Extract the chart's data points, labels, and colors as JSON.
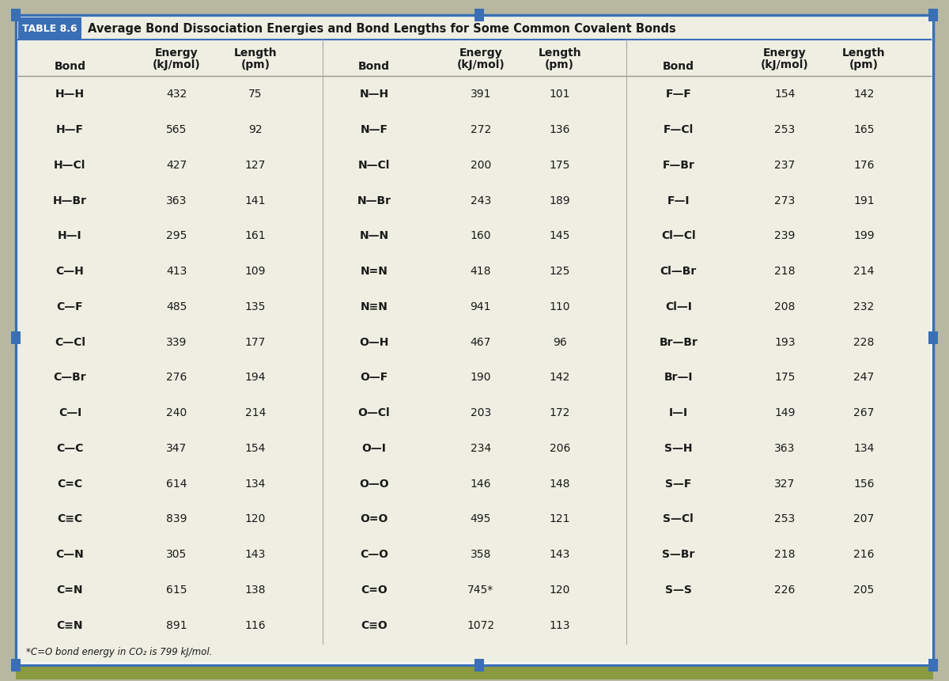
{
  "title": "Average Bond Dissociation Energies and Bond Lengths for Some Common Covalent Bonds",
  "table_label": "TABLE 8.6",
  "footnote": "*C=O bond energy in CO₂ is 799 kJ/mol.",
  "col1": [
    [
      "H—H",
      "432",
      "75"
    ],
    [
      "H—F",
      "565",
      "92"
    ],
    [
      "H—Cl",
      "427",
      "127"
    ],
    [
      "H—Br",
      "363",
      "141"
    ],
    [
      "H—I",
      "295",
      "161"
    ],
    [
      "C—H",
      "413",
      "109"
    ],
    [
      "C—F",
      "485",
      "135"
    ],
    [
      "C—Cl",
      "339",
      "177"
    ],
    [
      "C—Br",
      "276",
      "194"
    ],
    [
      "C—I",
      "240",
      "214"
    ],
    [
      "C—C",
      "347",
      "154"
    ],
    [
      "C=C",
      "614",
      "134"
    ],
    [
      "C≡C",
      "839",
      "120"
    ],
    [
      "C—N",
      "305",
      "143"
    ],
    [
      "C=N",
      "615",
      "138"
    ],
    [
      "C≡N",
      "891",
      "116"
    ]
  ],
  "col2": [
    [
      "N—H",
      "391",
      "101"
    ],
    [
      "N—F",
      "272",
      "136"
    ],
    [
      "N—Cl",
      "200",
      "175"
    ],
    [
      "N—Br",
      "243",
      "189"
    ],
    [
      "N—N",
      "160",
      "145"
    ],
    [
      "N=N",
      "418",
      "125"
    ],
    [
      "N≡N",
      "941",
      "110"
    ],
    [
      "O—H",
      "467",
      "96"
    ],
    [
      "O—F",
      "190",
      "142"
    ],
    [
      "O—Cl",
      "203",
      "172"
    ],
    [
      "O—I",
      "234",
      "206"
    ],
    [
      "O—O",
      "146",
      "148"
    ],
    [
      "O=O",
      "495",
      "121"
    ],
    [
      "C—O",
      "358",
      "143"
    ],
    [
      "C=O",
      "745*",
      "120"
    ],
    [
      "C≡O",
      "1072",
      "113"
    ]
  ],
  "col3": [
    [
      "F—F",
      "154",
      "142"
    ],
    [
      "F—Cl",
      "253",
      "165"
    ],
    [
      "F—Br",
      "237",
      "176"
    ],
    [
      "F—I",
      "273",
      "191"
    ],
    [
      "Cl—Cl",
      "239",
      "199"
    ],
    [
      "Cl—Br",
      "218",
      "214"
    ],
    [
      "Cl—I",
      "208",
      "232"
    ],
    [
      "Br—Br",
      "193",
      "228"
    ],
    [
      "Br—I",
      "175",
      "247"
    ],
    [
      "I—I",
      "149",
      "267"
    ],
    [
      "S—H",
      "363",
      "134"
    ],
    [
      "S—F",
      "327",
      "156"
    ],
    [
      "S—Cl",
      "253",
      "207"
    ],
    [
      "S—Br",
      "218",
      "216"
    ],
    [
      "S—S",
      "226",
      "205"
    ],
    [
      "",
      "",
      ""
    ]
  ],
  "bg_color": "#eeeee2",
  "title_bg": "#3a6fb5",
  "title_fg": "#ffffff",
  "border_color": "#3a6fb5",
  "outer_bg": "#b8b8a0",
  "text_color": "#1a1a1a",
  "font_size": 10,
  "header_font_size": 10,
  "title_font_size": 10.5,
  "label_font_size": 9
}
